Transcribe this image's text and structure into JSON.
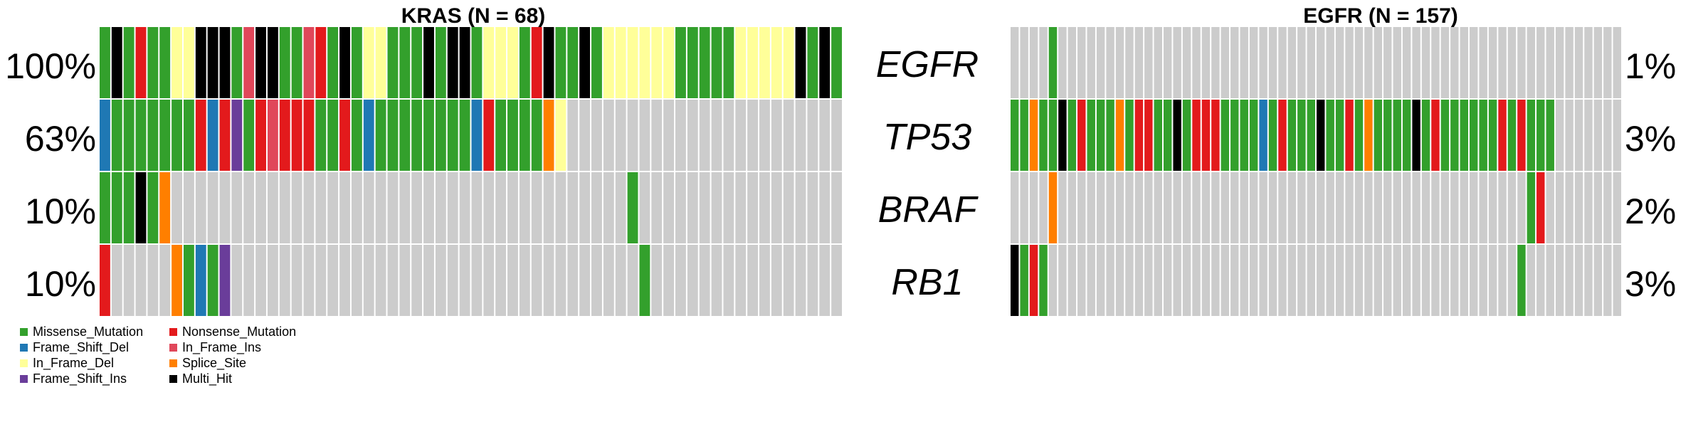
{
  "chart_data": {
    "type": "heatmap",
    "genes": [
      "EGFR",
      "TP53",
      "BRAF",
      "RB1"
    ],
    "variant_classes": {
      "M": "Missense_Mutation",
      "N": "Nonsense_Mutation",
      "F": "Frame_Shift_Del",
      "I": "In_Frame_Ins",
      "D": "In_Frame_Del",
      "S": "Splice_Site",
      "P": "Frame_Shift_Ins",
      "H": "Multi_Hit",
      ".": "No mutation"
    },
    "colors": {
      "M": "#33A02C",
      "N": "#E31A1C",
      "F": "#1F78B4",
      "I": "#E0475A",
      "D": "#FFFF99",
      "S": "#FF7F00",
      "P": "#6A3D9A",
      "H": "#000000",
      ".": "#CCCCCC"
    },
    "panels": [
      {
        "title": "KRAS (N = 68)",
        "gene_percents": [
          "100%",
          "63%",
          "10%",
          "10%"
        ],
        "rows": [
          "MHMNMMDDHHHMIHHMMINMHMDDMMMHMHHMDDDMNHMMHMDDDDDDMMMMMDDDDDHMHM",
          "FMMMMMMMNFNPMNINNNMMNMFMMMMMMMMFNMMMMSD.......................",
          "MMMHMS......................................M.................",
          "N.....SMFMP..................................M................"
        ]
      },
      {
        "title": "EGFR (N = 157)",
        "gene_percents": [
          "1%",
          "3%",
          "2%",
          "3%"
        ],
        "rows": [
          "....M...................................................",
          "MMSMMHMNMMMSMNNMMHMNNNMMMMFMNMMMHMMNMSMMMMHMNMMMMMMNMNMMM.......",
          "....S.................................................MN",
          "HMNM.................................................M.."
        ]
      }
    ],
    "legend": [
      {
        "code": "M",
        "label": "Missense_Mutation"
      },
      {
        "code": "N",
        "label": "Nonsense_Mutation"
      },
      {
        "code": "F",
        "label": "Frame_Shift_Del"
      },
      {
        "code": "I",
        "label": "In_Frame_Ins"
      },
      {
        "code": "D",
        "label": "In_Frame_Del"
      },
      {
        "code": "S",
        "label": "Splice_Site"
      },
      {
        "code": "P",
        "label": "Frame_Shift_Ins"
      },
      {
        "code": "H",
        "label": "Multi_Hit"
      }
    ]
  }
}
